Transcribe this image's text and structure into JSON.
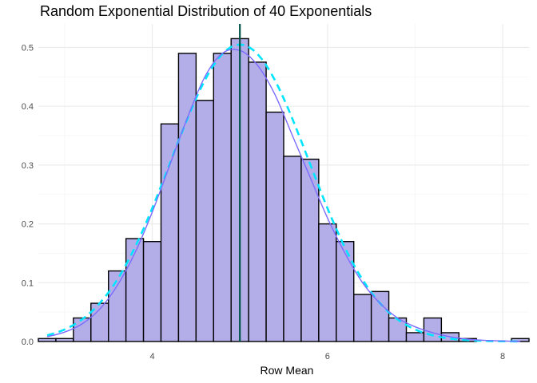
{
  "chart_data": {
    "type": "bar",
    "title": "Random Exponential Distribution of 40 Exponentials",
    "xlabel": "Row Mean",
    "ylabel": "",
    "xlim": [
      2.7,
      8.3
    ],
    "ylim": [
      0,
      0.54
    ],
    "x_ticks": [
      4,
      6,
      8
    ],
    "y_ticks": [
      0.0,
      0.1,
      0.2,
      0.3,
      0.4,
      0.5
    ],
    "y_tick_labels": [
      "0.0",
      "0.1",
      "0.2",
      "0.3",
      "0.4",
      "0.5"
    ],
    "grid": true,
    "bin_width": 0.2,
    "bins": [
      {
        "x": 2.8,
        "density": 0.005
      },
      {
        "x": 3.0,
        "density": 0.005
      },
      {
        "x": 3.2,
        "density": 0.04
      },
      {
        "x": 3.4,
        "density": 0.065
      },
      {
        "x": 3.6,
        "density": 0.12
      },
      {
        "x": 3.8,
        "density": 0.175
      },
      {
        "x": 4.0,
        "density": 0.17
      },
      {
        "x": 4.2,
        "density": 0.37
      },
      {
        "x": 4.4,
        "density": 0.49
      },
      {
        "x": 4.6,
        "density": 0.41
      },
      {
        "x": 4.8,
        "density": 0.49
      },
      {
        "x": 5.0,
        "density": 0.515
      },
      {
        "x": 5.2,
        "density": 0.475
      },
      {
        "x": 5.4,
        "density": 0.39
      },
      {
        "x": 5.6,
        "density": 0.315
      },
      {
        "x": 5.8,
        "density": 0.31
      },
      {
        "x": 6.0,
        "density": 0.2
      },
      {
        "x": 6.2,
        "density": 0.17
      },
      {
        "x": 6.4,
        "density": 0.08
      },
      {
        "x": 6.6,
        "density": 0.085
      },
      {
        "x": 6.8,
        "density": 0.04
      },
      {
        "x": 7.0,
        "density": 0.015
      },
      {
        "x": 7.2,
        "density": 0.04
      },
      {
        "x": 7.4,
        "density": 0.015
      },
      {
        "x": 7.6,
        "density": 0.005
      },
      {
        "x": 7.8,
        "density": 0.0
      },
      {
        "x": 8.0,
        "density": 0.0
      },
      {
        "x": 8.2,
        "density": 0.005
      }
    ],
    "vertical_line": {
      "x": 5.0,
      "color": "#00554a"
    },
    "density_curve": {
      "color": "#7b6bff",
      "points": [
        [
          2.8,
          0.008
        ],
        [
          3.0,
          0.016
        ],
        [
          3.2,
          0.03
        ],
        [
          3.4,
          0.055
        ],
        [
          3.6,
          0.095
        ],
        [
          3.8,
          0.15
        ],
        [
          4.0,
          0.22
        ],
        [
          4.2,
          0.3
        ],
        [
          4.4,
          0.38
        ],
        [
          4.6,
          0.45
        ],
        [
          4.8,
          0.49
        ],
        [
          5.0,
          0.495
        ],
        [
          5.2,
          0.47
        ],
        [
          5.4,
          0.42
        ],
        [
          5.6,
          0.35
        ],
        [
          5.8,
          0.28
        ],
        [
          6.0,
          0.21
        ],
        [
          6.2,
          0.15
        ],
        [
          6.4,
          0.1
        ],
        [
          6.6,
          0.065
        ],
        [
          6.8,
          0.04
        ],
        [
          7.0,
          0.025
        ],
        [
          7.2,
          0.015
        ],
        [
          7.4,
          0.008
        ],
        [
          7.6,
          0.004
        ],
        [
          7.8,
          0.002
        ],
        [
          8.0,
          0.001
        ],
        [
          8.2,
          0.0
        ]
      ]
    },
    "normal_curve": {
      "mean": 5.0,
      "sd": 0.79,
      "color": "#00e5ff",
      "dashed": true
    },
    "colors": {
      "bar_fill": "#b3aee8",
      "bar_stroke": "#000000",
      "grid_major": "#ebebeb",
      "grid_minor": "#f5f5f5"
    }
  }
}
